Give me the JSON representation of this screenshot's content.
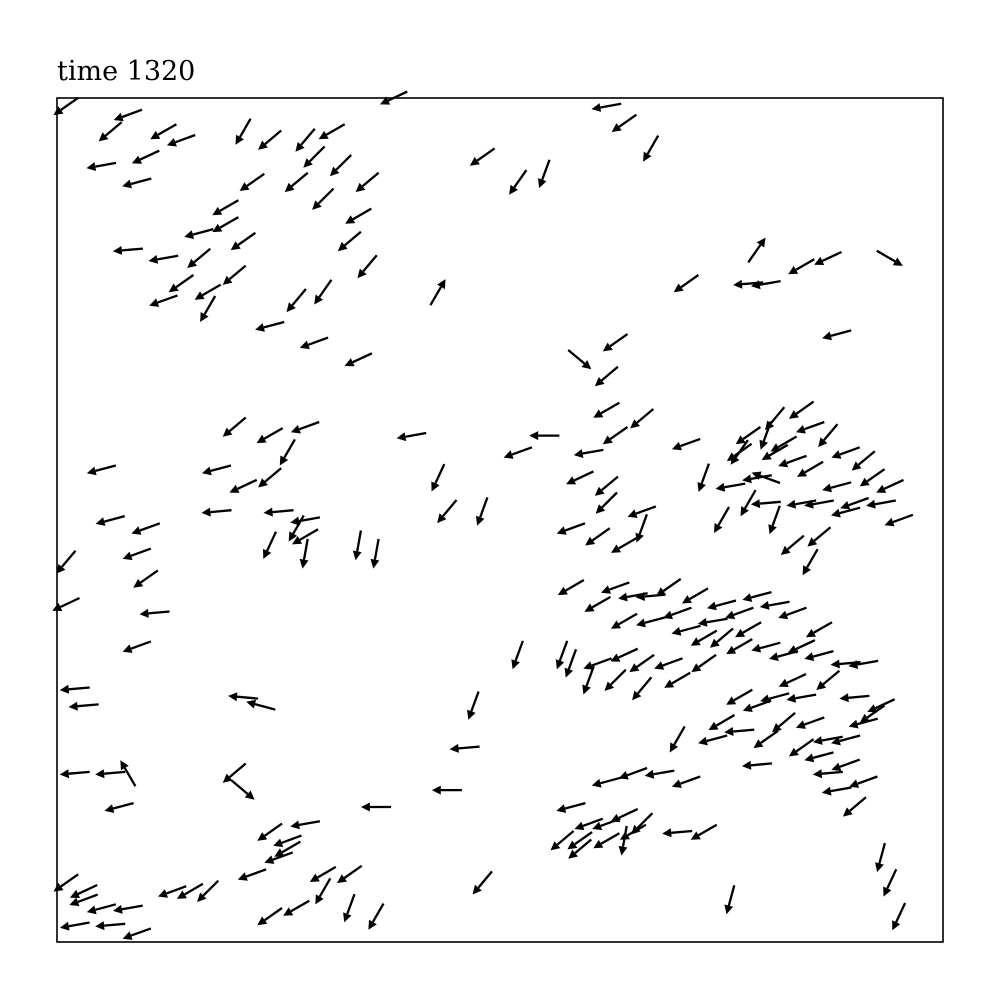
{
  "chart_data": {
    "type": "quiver",
    "title": "time 1320",
    "xlim": [
      0,
      1
    ],
    "ylim": [
      0,
      1
    ],
    "grid": false,
    "axes_ticks": false,
    "color": "#000000",
    "arrow_length": 0.034,
    "arrows": [
      [
        0.01,
        0.99,
        -145
      ],
      [
        0.06,
        0.96,
        -140
      ],
      [
        0.08,
        0.98,
        -160
      ],
      [
        0.1,
        0.93,
        -155
      ],
      [
        0.12,
        0.96,
        -150
      ],
      [
        0.05,
        0.92,
        -170
      ],
      [
        0.09,
        0.9,
        -165
      ],
      [
        0.14,
        0.95,
        -160
      ],
      [
        0.08,
        0.82,
        -175
      ],
      [
        0.12,
        0.81,
        -170
      ],
      [
        0.16,
        0.84,
        -165
      ],
      [
        0.19,
        0.85,
        -150
      ],
      [
        0.2,
        0.79,
        -140
      ],
      [
        0.17,
        0.77,
        -150
      ],
      [
        0.14,
        0.78,
        -145
      ],
      [
        0.17,
        0.75,
        -120
      ],
      [
        0.16,
        0.81,
        -140
      ],
      [
        0.12,
        0.76,
        -160
      ],
      [
        0.21,
        0.96,
        -120
      ],
      [
        0.24,
        0.95,
        -140
      ],
      [
        0.22,
        0.9,
        -145
      ],
      [
        0.28,
        0.95,
        -130
      ],
      [
        0.29,
        0.93,
        -135
      ],
      [
        0.31,
        0.96,
        -150
      ],
      [
        0.32,
        0.92,
        -135
      ],
      [
        0.27,
        0.9,
        -140
      ],
      [
        0.35,
        0.9,
        -140
      ],
      [
        0.3,
        0.88,
        -135
      ],
      [
        0.34,
        0.86,
        -150
      ],
      [
        0.33,
        0.83,
        -140
      ],
      [
        0.35,
        0.8,
        -130
      ],
      [
        0.27,
        0.76,
        -130
      ],
      [
        0.3,
        0.77,
        -125
      ],
      [
        0.24,
        0.73,
        -165
      ],
      [
        0.29,
        0.71,
        -160
      ],
      [
        0.34,
        0.69,
        -155
      ],
      [
        0.19,
        0.87,
        -150
      ],
      [
        0.21,
        0.83,
        -145
      ],
      [
        0.38,
        1.0,
        -155
      ],
      [
        0.48,
        0.93,
        -145
      ],
      [
        0.55,
        0.91,
        -110
      ],
      [
        0.52,
        0.9,
        -125
      ],
      [
        0.62,
        0.99,
        -170
      ],
      [
        0.64,
        0.97,
        -145
      ],
      [
        0.67,
        0.94,
        -120
      ],
      [
        0.43,
        0.77,
        60
      ],
      [
        0.71,
        0.78,
        -145
      ],
      [
        0.79,
        0.82,
        55
      ],
      [
        0.78,
        0.78,
        -175
      ],
      [
        0.8,
        0.78,
        -170
      ],
      [
        0.84,
        0.8,
        -150
      ],
      [
        0.87,
        0.81,
        -155
      ],
      [
        0.94,
        0.81,
        -30
      ],
      [
        0.59,
        0.69,
        -40
      ],
      [
        0.62,
        0.67,
        -140
      ],
      [
        0.63,
        0.71,
        -145
      ],
      [
        0.62,
        0.63,
        -150
      ],
      [
        0.88,
        0.72,
        -165
      ],
      [
        0.84,
        0.63,
        -145
      ],
      [
        0.81,
        0.62,
        -130
      ],
      [
        0.82,
        0.59,
        -150
      ],
      [
        0.2,
        0.61,
        -140
      ],
      [
        0.24,
        0.6,
        -150
      ],
      [
        0.26,
        0.58,
        -120
      ],
      [
        0.28,
        0.61,
        -160
      ],
      [
        0.18,
        0.56,
        -165
      ],
      [
        0.21,
        0.54,
        -155
      ],
      [
        0.24,
        0.55,
        -140
      ],
      [
        0.25,
        0.51,
        -175
      ],
      [
        0.28,
        0.5,
        -170
      ],
      [
        0.18,
        0.51,
        -175
      ],
      [
        0.4,
        0.6,
        -170
      ],
      [
        0.43,
        0.55,
        -115
      ],
      [
        0.05,
        0.56,
        -165
      ],
      [
        0.06,
        0.5,
        -165
      ],
      [
        0.1,
        0.49,
        -160
      ],
      [
        0.09,
        0.46,
        -160
      ],
      [
        0.1,
        0.43,
        -145
      ],
      [
        0.11,
        0.39,
        -175
      ],
      [
        0.01,
        0.4,
        -155
      ],
      [
        0.01,
        0.45,
        -130
      ],
      [
        0.55,
        0.6,
        180
      ],
      [
        0.52,
        0.58,
        -160
      ],
      [
        0.6,
        0.58,
        -170
      ],
      [
        0.59,
        0.55,
        -155
      ],
      [
        0.63,
        0.6,
        -145
      ],
      [
        0.66,
        0.62,
        -140
      ],
      [
        0.71,
        0.59,
        -160
      ],
      [
        0.44,
        0.51,
        -130
      ],
      [
        0.48,
        0.51,
        -110
      ],
      [
        0.24,
        0.47,
        -115
      ],
      [
        0.28,
        0.48,
        -150
      ],
      [
        0.27,
        0.49,
        -120
      ],
      [
        0.28,
        0.46,
        -100
      ],
      [
        0.34,
        0.47,
        -100
      ],
      [
        0.36,
        0.46,
        -100
      ],
      [
        0.58,
        0.49,
        -160
      ],
      [
        0.61,
        0.48,
        -145
      ],
      [
        0.62,
        0.52,
        -135
      ],
      [
        0.66,
        0.51,
        -160
      ],
      [
        0.64,
        0.47,
        -150
      ],
      [
        0.66,
        0.49,
        -110
      ],
      [
        0.62,
        0.54,
        -140
      ],
      [
        0.8,
        0.55,
        160
      ],
      [
        0.77,
        0.58,
        -145
      ],
      [
        0.8,
        0.6,
        -110
      ],
      [
        0.81,
        0.58,
        -150
      ],
      [
        0.83,
        0.57,
        -160
      ],
      [
        0.85,
        0.61,
        -160
      ],
      [
        0.87,
        0.6,
        -130
      ],
      [
        0.89,
        0.58,
        -160
      ],
      [
        0.91,
        0.57,
        -140
      ],
      [
        0.92,
        0.55,
        -145
      ],
      [
        0.85,
        0.56,
        -150
      ],
      [
        0.88,
        0.54,
        -165
      ],
      [
        0.89,
        0.51,
        -165
      ],
      [
        0.86,
        0.52,
        -170
      ],
      [
        0.9,
        0.52,
        -160
      ],
      [
        0.93,
        0.52,
        -170
      ],
      [
        0.95,
        0.5,
        -160
      ],
      [
        0.94,
        0.54,
        -155
      ],
      [
        0.84,
        0.52,
        -170
      ],
      [
        0.8,
        0.52,
        -175
      ],
      [
        0.79,
        0.55,
        -170
      ],
      [
        0.76,
        0.54,
        -170
      ],
      [
        0.73,
        0.55,
        -110
      ],
      [
        0.78,
        0.52,
        -120
      ],
      [
        0.81,
        0.5,
        -110
      ],
      [
        0.77,
        0.58,
        -125
      ],
      [
        0.75,
        0.5,
        -120
      ],
      [
        0.78,
        0.6,
        -145
      ],
      [
        0.83,
        0.47,
        -140
      ],
      [
        0.86,
        0.48,
        -140
      ],
      [
        0.85,
        0.45,
        -120
      ],
      [
        0.58,
        0.42,
        -150
      ],
      [
        0.63,
        0.42,
        -160
      ],
      [
        0.65,
        0.41,
        -170
      ],
      [
        0.67,
        0.41,
        -175
      ],
      [
        0.69,
        0.42,
        -145
      ],
      [
        0.72,
        0.41,
        -150
      ],
      [
        0.7,
        0.39,
        -160
      ],
      [
        0.67,
        0.38,
        -165
      ],
      [
        0.64,
        0.38,
        -150
      ],
      [
        0.61,
        0.4,
        -150
      ],
      [
        0.71,
        0.37,
        -165
      ],
      [
        0.74,
        0.38,
        -170
      ],
      [
        0.75,
        0.4,
        -165
      ],
      [
        0.77,
        0.39,
        -160
      ],
      [
        0.79,
        0.41,
        -165
      ],
      [
        0.81,
        0.4,
        -170
      ],
      [
        0.83,
        0.39,
        -160
      ],
      [
        0.78,
        0.37,
        -150
      ],
      [
        0.75,
        0.36,
        -140
      ],
      [
        0.77,
        0.35,
        -150
      ],
      [
        0.8,
        0.35,
        -165
      ],
      [
        0.82,
        0.34,
        -165
      ],
      [
        0.84,
        0.35,
        -155
      ],
      [
        0.86,
        0.37,
        -150
      ],
      [
        0.86,
        0.34,
        -165
      ],
      [
        0.89,
        0.33,
        -175
      ],
      [
        0.91,
        0.33,
        -170
      ],
      [
        0.87,
        0.31,
        -140
      ],
      [
        0.73,
        0.36,
        -150
      ],
      [
        0.69,
        0.33,
        -160
      ],
      [
        0.66,
        0.33,
        -145
      ],
      [
        0.64,
        0.34,
        -155
      ],
      [
        0.61,
        0.33,
        -160
      ],
      [
        0.6,
        0.31,
        -110
      ],
      [
        0.58,
        0.33,
        -110
      ],
      [
        0.57,
        0.34,
        -110
      ],
      [
        0.52,
        0.34,
        -110
      ],
      [
        0.63,
        0.31,
        -135
      ],
      [
        0.66,
        0.3,
        -130
      ],
      [
        0.7,
        0.31,
        -150
      ],
      [
        0.73,
        0.33,
        -145
      ],
      [
        0.79,
        0.28,
        -160
      ],
      [
        0.81,
        0.29,
        -165
      ],
      [
        0.84,
        0.29,
        -170
      ],
      [
        0.85,
        0.26,
        -160
      ],
      [
        0.82,
        0.26,
        -140
      ],
      [
        0.8,
        0.24,
        -145
      ],
      [
        0.77,
        0.25,
        -175
      ],
      [
        0.75,
        0.26,
        -150
      ],
      [
        0.77,
        0.29,
        -150
      ],
      [
        0.83,
        0.31,
        -155
      ],
      [
        0.87,
        0.24,
        -170
      ],
      [
        0.89,
        0.24,
        -165
      ],
      [
        0.91,
        0.26,
        -165
      ],
      [
        0.92,
        0.27,
        -145
      ],
      [
        0.93,
        0.28,
        -155
      ],
      [
        0.9,
        0.29,
        -175
      ],
      [
        0.87,
        0.2,
        -175
      ],
      [
        0.86,
        0.22,
        -165
      ],
      [
        0.89,
        0.21,
        -160
      ],
      [
        0.91,
        0.19,
        -160
      ],
      [
        0.88,
        0.18,
        -170
      ],
      [
        0.9,
        0.16,
        -140
      ],
      [
        0.84,
        0.23,
        -145
      ],
      [
        0.79,
        0.21,
        -175
      ],
      [
        0.74,
        0.24,
        -165
      ],
      [
        0.71,
        0.19,
        -160
      ],
      [
        0.68,
        0.2,
        -170
      ],
      [
        0.65,
        0.2,
        -160
      ],
      [
        0.62,
        0.19,
        -165
      ],
      [
        0.7,
        0.24,
        -120
      ],
      [
        0.58,
        0.16,
        -165
      ],
      [
        0.6,
        0.14,
        -160
      ],
      [
        0.59,
        0.12,
        -145
      ],
      [
        0.57,
        0.12,
        -140
      ],
      [
        0.59,
        0.11,
        -140
      ],
      [
        0.62,
        0.12,
        -150
      ],
      [
        0.64,
        0.12,
        -100
      ],
      [
        0.65,
        0.13,
        -150
      ],
      [
        0.64,
        0.15,
        -155
      ],
      [
        0.62,
        0.14,
        -160
      ],
      [
        0.66,
        0.14,
        -135
      ],
      [
        0.7,
        0.13,
        -175
      ],
      [
        0.73,
        0.13,
        -150
      ],
      [
        0.76,
        0.05,
        -105
      ],
      [
        0.93,
        0.1,
        -105
      ],
      [
        0.94,
        0.07,
        -115
      ],
      [
        0.95,
        0.03,
        -115
      ],
      [
        0.47,
        0.28,
        -110
      ],
      [
        0.46,
        0.23,
        -175
      ],
      [
        0.44,
        0.18,
        180
      ],
      [
        0.36,
        0.16,
        180
      ],
      [
        0.48,
        0.07,
        -130
      ],
      [
        0.2,
        0.2,
        -140
      ],
      [
        0.21,
        0.18,
        -40
      ],
      [
        0.08,
        0.2,
        120
      ],
      [
        0.06,
        0.2,
        -175
      ],
      [
        0.07,
        0.16,
        -165
      ],
      [
        0.02,
        0.2,
        -175
      ],
      [
        0.02,
        0.3,
        -175
      ],
      [
        0.03,
        0.28,
        -175
      ],
      [
        0.21,
        0.29,
        175
      ],
      [
        0.23,
        0.28,
        165
      ],
      [
        0.09,
        0.35,
        -160
      ],
      [
        0.24,
        0.13,
        -145
      ],
      [
        0.26,
        0.12,
        -160
      ],
      [
        0.28,
        0.14,
        -170
      ],
      [
        0.26,
        0.11,
        -150
      ],
      [
        0.22,
        0.08,
        -160
      ],
      [
        0.25,
        0.1,
        -160
      ],
      [
        0.3,
        0.08,
        -150
      ],
      [
        0.33,
        0.08,
        -145
      ],
      [
        0.3,
        0.06,
        -120
      ],
      [
        0.27,
        0.04,
        -150
      ],
      [
        0.24,
        0.03,
        -145
      ],
      [
        0.33,
        0.04,
        -110
      ],
      [
        0.36,
        0.03,
        -120
      ],
      [
        0.17,
        0.06,
        -135
      ],
      [
        0.15,
        0.06,
        -150
      ],
      [
        0.13,
        0.06,
        -160
      ],
      [
        0.01,
        0.07,
        -145
      ],
      [
        0.03,
        0.05,
        -160
      ],
      [
        0.05,
        0.04,
        -165
      ],
      [
        0.08,
        0.04,
        -170
      ],
      [
        0.02,
        0.02,
        -170
      ],
      [
        0.06,
        0.02,
        -175
      ],
      [
        0.09,
        0.01,
        -160
      ],
      [
        0.03,
        0.06,
        -155
      ]
    ]
  }
}
